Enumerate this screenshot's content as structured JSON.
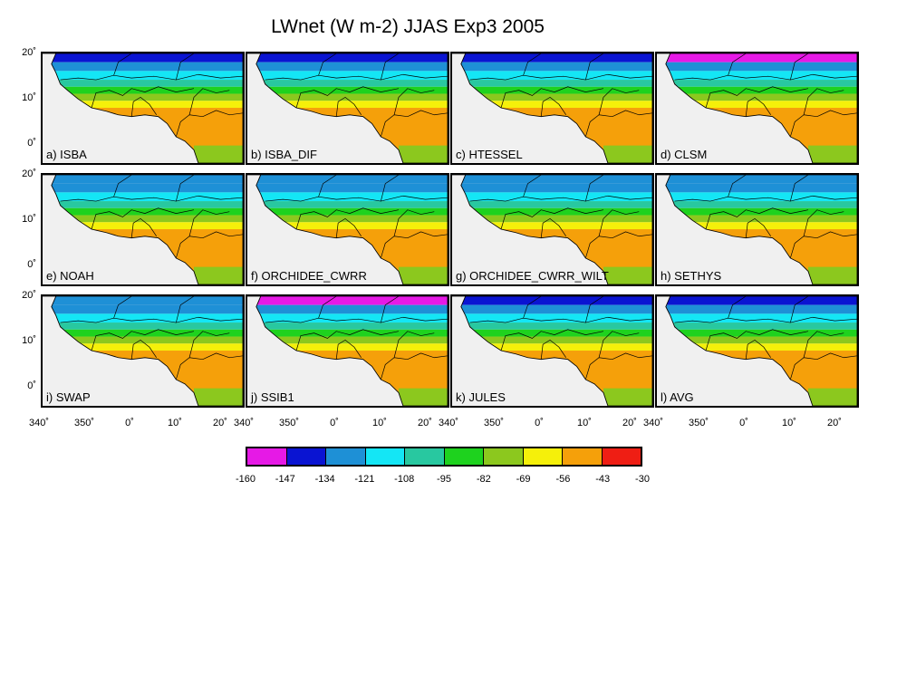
{
  "title": "LWnet (W m-2) JJAS Exp3 2005",
  "panels": [
    {
      "label": "a) ISBA",
      "coast_intensity": 3,
      "north_intensity": 1
    },
    {
      "label": "b) ISBA_DIF",
      "coast_intensity": 3,
      "north_intensity": 1
    },
    {
      "label": "c) HTESSEL",
      "coast_intensity": 3,
      "north_intensity": 1
    },
    {
      "label": "d) CLSM",
      "coast_intensity": 3,
      "north_intensity": 0
    },
    {
      "label": "e) NOAH",
      "coast_intensity": 1,
      "north_intensity": 2
    },
    {
      "label": "f) ORCHIDEE_CWRR",
      "coast_intensity": 3,
      "north_intensity": 2
    },
    {
      "label": "g) ORCHIDEE_CWRR_WILT",
      "coast_intensity": 3,
      "north_intensity": 2
    },
    {
      "label": "h) SETHYS",
      "coast_intensity": 2,
      "north_intensity": 2
    },
    {
      "label": "i) SWAP",
      "coast_intensity": 3,
      "north_intensity": 2
    },
    {
      "label": "j) SSIB1",
      "coast_intensity": 3,
      "north_intensity": 0
    },
    {
      "label": "k) JULES",
      "coast_intensity": 3,
      "north_intensity": 1
    },
    {
      "label": "l) AVG",
      "coast_intensity": 3,
      "north_intensity": 1
    }
  ],
  "y_ticks": [
    "20˚",
    "10˚",
    "0˚"
  ],
  "x_ticks": [
    "340˚",
    "350˚",
    "0˚",
    "10˚",
    "20˚"
  ],
  "colorbar": {
    "levels": [
      "-160",
      "-147",
      "-134",
      "-121",
      "-108",
      "-95",
      "-82",
      "-69",
      "-56",
      "-43",
      "-30"
    ],
    "colors": [
      "#e619e6",
      "#0a14d2",
      "#1e90d6",
      "#14e6f5",
      "#28c8a0",
      "#1ed21e",
      "#8cc81e",
      "#f5f00a",
      "#f5a00a",
      "#ef1e14"
    ]
  }
}
